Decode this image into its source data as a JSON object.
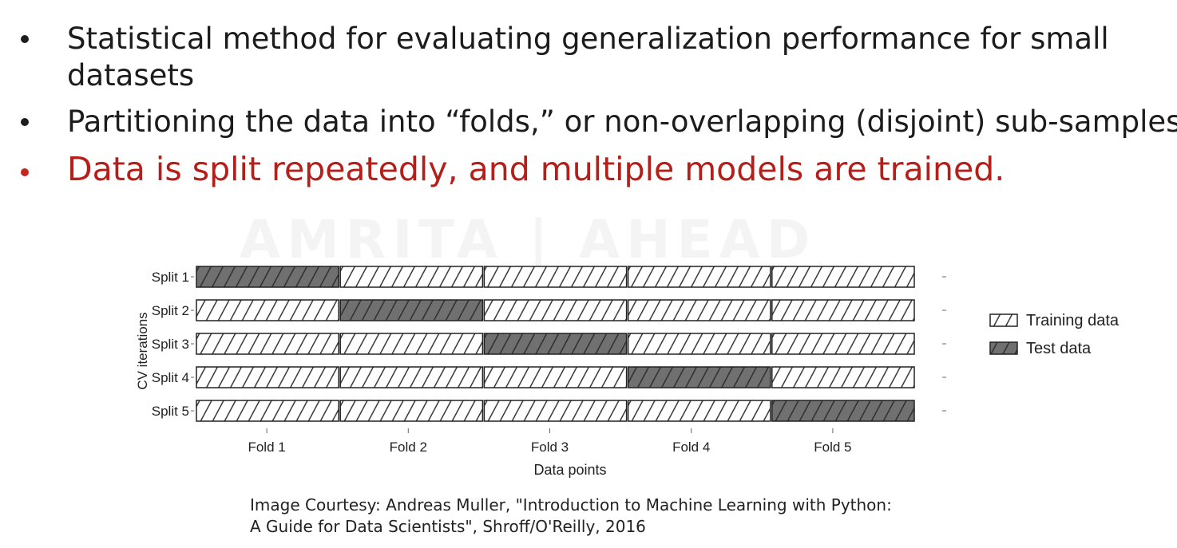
{
  "bullets": [
    {
      "lines": [
        "Statistical method for evaluating generalization performance for small",
        "datasets"
      ]
    },
    {
      "lines": [
        "Partitioning the data into “folds,” or non-overlapping (disjoint) sub-samples"
      ]
    },
    {
      "lines": [
        "Data is split repeatedly, and multiple models are trained."
      ],
      "color": "#b41f1a"
    }
  ],
  "watermark": "AMRITA | AHEAD",
  "chart_data": {
    "type": "table",
    "ylabel": "CV iterations",
    "xlabel": "Data points",
    "rows": [
      "Split 1",
      "Split 2",
      "Split 3",
      "Split 4",
      "Split 5"
    ],
    "columns": [
      "Fold 1",
      "Fold 2",
      "Fold 3",
      "Fold 4",
      "Fold 5"
    ],
    "test_fold_index_per_row": [
      0,
      1,
      2,
      3,
      4
    ],
    "legend": [
      {
        "label": "Training data",
        "color": "#ffffff"
      },
      {
        "label": "Test data",
        "color": "#707070"
      }
    ],
    "legend_position": "right"
  },
  "caption": {
    "line1": "Image Courtesy: Andreas Muller, \"Introduction to Machine Learning with Python:",
    "line2": "A Guide for Data Scientists\", Shroff/O'Reilly, 2016"
  }
}
